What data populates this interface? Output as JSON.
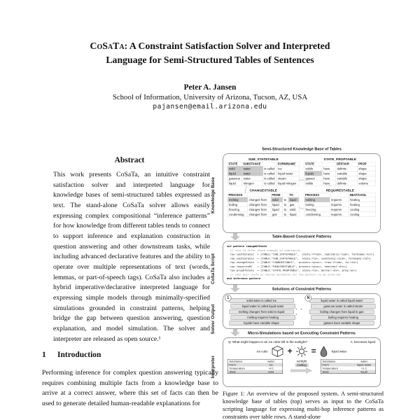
{
  "page": {
    "title_brand": "CoSaTa:",
    "title_rest_line1": " A Constraint Satisfaction Solver and Interpreted",
    "title_line2": "Language for Semi-Structured Tables of Sentences",
    "author": "Peter A. Jansen",
    "affiliation": "School of Information, University of Arizona, Tucson, AZ, USA",
    "email": "pajansen@email.arizona.edu"
  },
  "abstract": {
    "heading": "Abstract",
    "body": "This work presents CoSaTa, an intuitive constraint satisfaction solver and interpreted language for knowledge bases of semi-structured tables expressed as text.  The stand-alone CoSaTa solver allows easily expressing complex compositional “inference patterns” for how knowledge from different tables tends to connect to support inference and explanation construction in question answering and other downstream tasks, while including advanced declarative features and the ability to operate over multiple representations of text (words, lemmas, or part-of-speech tags).  CoSaTa also includes a hybrid imperative/declarative interpreted language for expressing simple models through minimally-specified simulations grounded in constraint patterns, helping bridge the gap between question answering, question explanation, and model simulation. The solver and interpreter are released as open source.¹"
  },
  "introduction": {
    "number": "1",
    "heading": "Introduction",
    "body": "Performing inference for complex question answering typically requires combining multiple facts from a knowledge base to arrive at a correct answer, where this set of facts can then be used to generate detailed human-readable explanations for"
  },
  "figure": {
    "labels": [
      "Knowledge Base",
      "CoSaTa Script",
      "Solver Output",
      "Interpreter"
    ],
    "kb": {
      "title": "Semi-Structured Knowledge Base of Tables",
      "tables": [
        {
          "name": "SUB_STATETABLE",
          "headers": [
            "STATE",
            "SUBSTANCE",
            "",
            "FORM/NAME"
          ],
          "rows": [
            [
              "solid",
              "water",
              "is called",
              "ice"
            ],
            [
              "liquid",
              "water",
              "is called",
              "liquid water"
            ],
            [
              "gaseous",
              "water",
              "is called",
              "steam"
            ],
            [
              "liquid",
              "nitrogen",
              "is called",
              "liquid nitrogen"
            ]
          ],
          "highlights": [
            [
              0,
              0
            ],
            [
              0,
              1
            ],
            [
              1,
              0
            ],
            [
              1,
              1
            ]
          ]
        },
        {
          "name": "STATE_PROPTABLE",
          "headers": [
            "STATE",
            "",
            "DEF/VAR",
            "PROP"
          ],
          "rows": [
            [
              "solids",
              "have",
              "definite",
              "shape"
            ],
            [
              "liquids",
              "have",
              "variable",
              "shape"
            ],
            [
              "gasses",
              "have",
              "variable",
              "shape"
            ],
            [
              "solids",
              "have",
              "definite",
              "volume"
            ]
          ],
          "highlights": [
            [
              1,
              0
            ]
          ]
        },
        {
          "name": "CHANGESTABLE",
          "headers": [
            "PROCESS",
            "",
            "FROM",
            "",
            "TO"
          ],
          "rows": [
            [
              "melting",
              "changes from",
              "solid",
              "to",
              "liquid"
            ],
            [
              "boiling",
              "changes from",
              "liquid",
              "to",
              "gas"
            ],
            [
              "freezing",
              "changes from",
              "liquid",
              "to",
              "solid"
            ],
            [
              "condensing",
              "changes from",
              "gas",
              "to",
              "liquid"
            ]
          ],
          "highlights": [
            [
              0,
              0
            ],
            [
              0,
              2
            ],
            [
              0,
              4
            ]
          ]
        },
        {
          "name": "REQUIRESTABLE",
          "headers": [
            "PROCESS",
            "",
            "HEAT/COOL"
          ],
          "rows": [
            [
              "melting",
              "requires",
              "heating"
            ],
            [
              "boiling",
              "requires",
              "heating"
            ],
            [
              "freezing",
              "requires",
              "cooling"
            ],
            [
              "condensing",
              "requires",
              "cooling"
            ]
          ],
          "highlights": [
            [
              0,
              0
            ]
          ]
        }
      ]
    },
    "script": {
      "title": "Table-Based Constraint Patterns",
      "lines": [
        {
          "kind": "keyword",
          "text": "inf pattern changeOfState"
        },
        {
          "kind": "comment",
          "text": "  // rule to infer state changes of substances"
        },
        {
          "kind": "code",
          "text": "  row subToState1  = [TABLE:\"SUB_STATETABLE\",  state:<from>, substance:<sub>, formname:<n1>]"
        },
        {
          "kind": "code",
          "text": "  row subToState2  = [TABLE:\"SUB_STATETABLE\",  state:<to>, substance:<sub>, formname:<n2>]"
        },
        {
          "kind": "code",
          "text": "  row changeState  = [TABLE:\"CHANGESTABLE\",  process:<proc>, from:<from>, to:<to>]"
        },
        {
          "kind": "code",
          "text": "  row requiresHC   = [TABLE:\"REQUIRESTABLE\", process:<proc>, heatcool:<hc>]"
        },
        {
          "kind": "code",
          "text": "  row propOfState  = [TABLE:\"STATE_PROPTABLE\", state:<to>, defvar:<dv>, prop:<p>]"
        },
        {
          "kind": "comment",
          "text": "  // rows must unify on shared variables for the pattern to be inferred"
        },
        {
          "kind": "keyword",
          "text": "end inference pattern"
        }
      ]
    },
    "solutions": {
      "title": "Solutions of Constraint Patterns",
      "badge_first": "1",
      "badge_last": "N",
      "ellipsis": "• • •",
      "first": [
        "solid water is called ice",
        "liquid water is called liquid water",
        "melting changes from solid to liquid",
        "melting requires heating",
        "liquids have variable shape"
      ],
      "last": [
        "liquid water is called liquid water",
        "gaseous water is called steam",
        "boiling changes from liquid to gas",
        "boiling requires heating",
        "gasses have variable shape"
      ]
    },
    "sim": {
      "title": "Micro-Simulations based on Executing Constraint Patterns",
      "question": "Q: What might happen to an ice cube left in the sunlight?",
      "answer": "A: becomes liquid",
      "left_icon_label": "ice cube",
      "plus": "+",
      "equals": "=",
      "right_icon_label": "liquid water",
      "arrow_top": "sunlight",
      "arrow_bottom": "melting",
      "before": {
        "rows": [
          [
            "Substance",
            "water"
          ],
          [
            "Form",
            "ice"
          ],
          [
            "Temperature",
            "-4 C"
          ],
          [
            "State",
            "solid"
          ]
        ]
      },
      "after": {
        "rows": [
          [
            "Substance",
            "water"
          ],
          [
            "Form",
            "liquid water"
          ],
          [
            "Temperature",
            "+1 C"
          ],
          [
            "State",
            "liquid"
          ]
        ]
      }
    },
    "caption": "Figure 1:  An overview of the proposed system.  A semi-structured knowledge base of tables (top) serves as input to the CoSaTa scripting language for expressing multi-hop inference patterns as constraints over table rows. A stand-alone"
  }
}
